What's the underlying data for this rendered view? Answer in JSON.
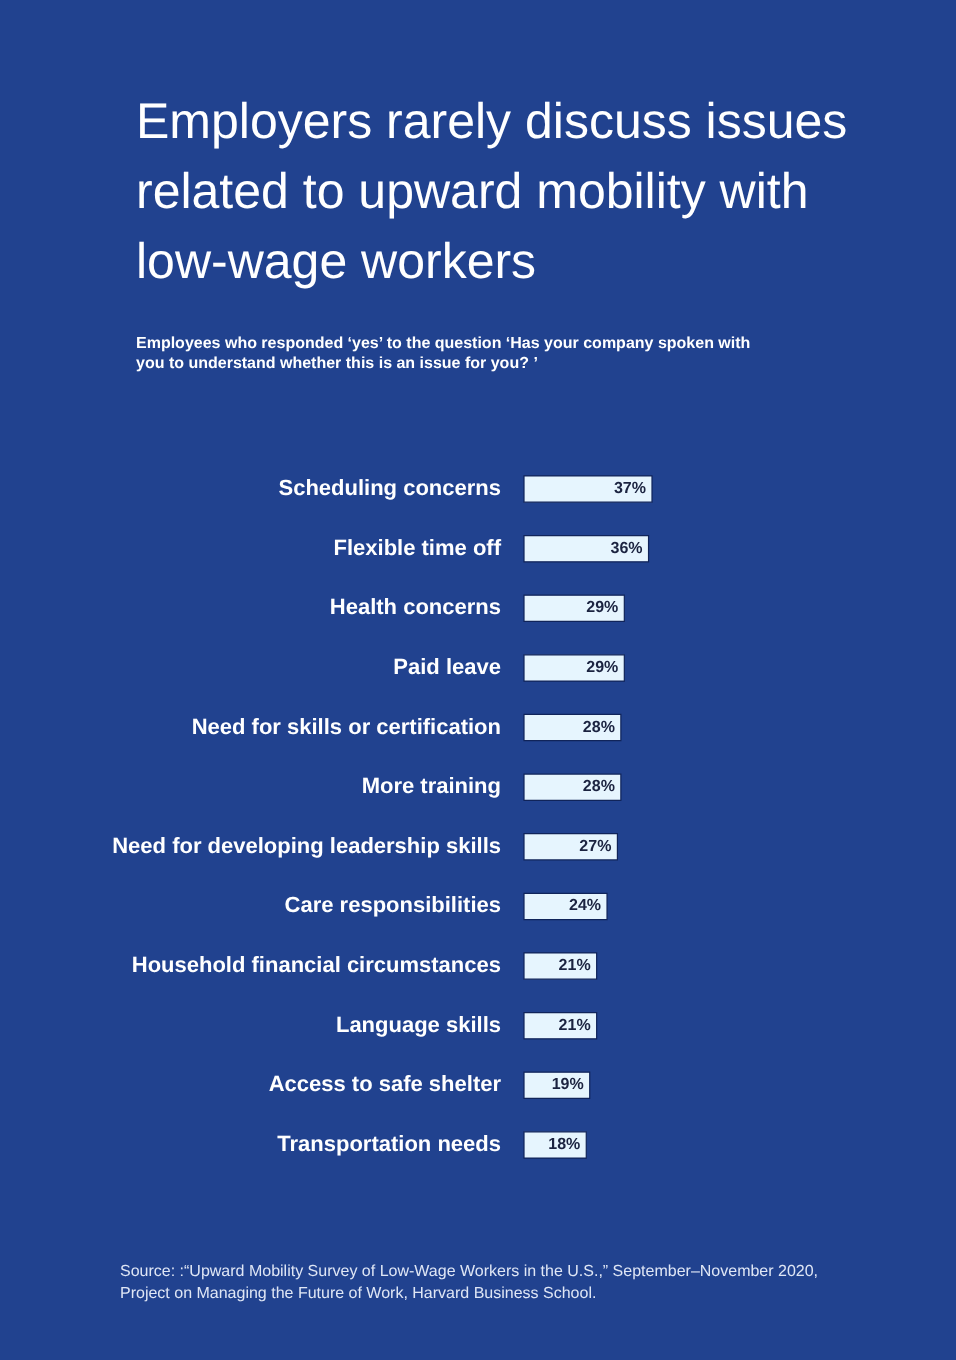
{
  "chart_data": {
    "type": "bar",
    "orientation": "horizontal",
    "title": "Employers rarely discuss issues related to upward mobility with low-wage workers",
    "subtitle": "Employees who responded ‘yes’ to the question ‘Has your company spoken with you to understand whether this is an issue for you? ’",
    "categories": [
      "Scheduling concerns",
      "Flexible time off",
      "Health concerns",
      "Paid leave",
      "Need for skills or certification",
      "More training",
      "Need for developing leadership skills",
      "Care responsibilities",
      "Household financial circumstances",
      "Language skills",
      "Access to safe shelter",
      "Transportation needs"
    ],
    "values": [
      37,
      36,
      29,
      29,
      28,
      28,
      27,
      24,
      21,
      21,
      19,
      18
    ],
    "value_labels": [
      "37%",
      "36%",
      "29%",
      "29%",
      "28%",
      "28%",
      "27%",
      "24%",
      "21%",
      "21%",
      "19%",
      "18%"
    ],
    "color": "#e6f5fe",
    "annotations": [
      "Source: :“Upward Mobility Survey of Low-Wage Workers in the U.S.,” September–November 2020, Project on Managing the Future of Work, Harvard Business School."
    ]
  }
}
